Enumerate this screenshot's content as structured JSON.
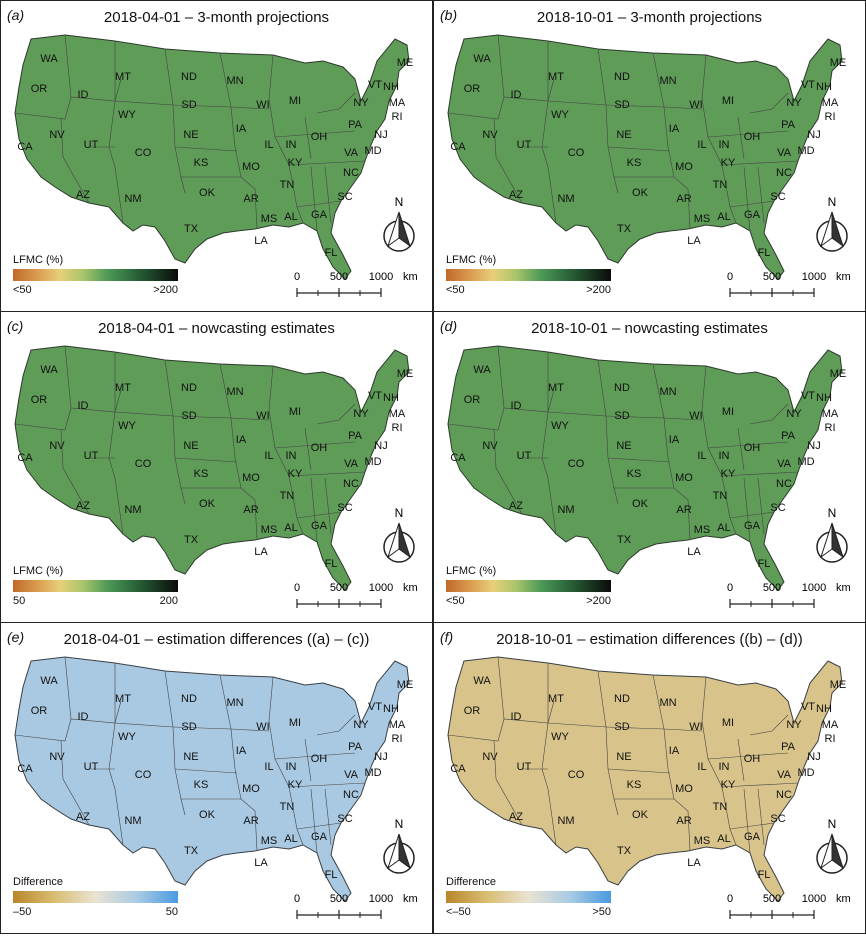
{
  "colors": {
    "lfmc": [
      "#c06a2a",
      "#d99a4e",
      "#e8cf7a",
      "#a7c46a",
      "#4f9a58",
      "#2f6e3e",
      "#1a3d24",
      "#0b0b0b"
    ],
    "diff": [
      "#b9862a",
      "#d9bd72",
      "#e9e3d2",
      "#a9cbe3",
      "#4a9ae0"
    ]
  },
  "panels": [
    {
      "label": "(a)",
      "title": "2018-04-01 – 3-month projections",
      "legend_title": "LFMC (%)",
      "cb_low": "<50",
      "cb_high": ">200",
      "palette": "lfmc",
      "map_tone": "green"
    },
    {
      "label": "(b)",
      "title": "2018-10-01 – 3-month projections",
      "legend_title": "LFMC (%)",
      "cb_low": "<50",
      "cb_high": ">200",
      "palette": "lfmc",
      "map_tone": "green"
    },
    {
      "label": "(c)",
      "title": "2018-04-01 – nowcasting estimates",
      "legend_title": "LFMC (%)",
      "cb_low": "50",
      "cb_high": "200",
      "palette": "lfmc",
      "map_tone": "green"
    },
    {
      "label": "(d)",
      "title": "2018-10-01 – nowcasting estimates",
      "legend_title": "LFMC (%)",
      "cb_low": "<50",
      "cb_high": ">200",
      "palette": "lfmc",
      "map_tone": "green"
    },
    {
      "label": "(e)",
      "title": "2018-04-01 – estimation differences ((a) – (c))",
      "legend_title": "Difference",
      "cb_low": "–50",
      "cb_high": "50",
      "palette": "diff",
      "map_tone": "blue"
    },
    {
      "label": "(f)",
      "title": "2018-10-01 – estimation differences ((b) – (d))",
      "legend_title": "Difference",
      "cb_low": "<–50",
      "cb_high": ">50",
      "palette": "diff",
      "map_tone": "tan"
    }
  ],
  "scalebar": {
    "ticks": [
      "0",
      "500",
      "1000"
    ],
    "unit": "km"
  },
  "north_label": "N",
  "states": [
    "WA",
    "OR",
    "CA",
    "ID",
    "NV",
    "MT",
    "WY",
    "UT",
    "AZ",
    "CO",
    "NM",
    "ND",
    "SD",
    "NE",
    "KS",
    "OK",
    "TX",
    "MN",
    "IA",
    "MO",
    "AR",
    "LA",
    "WI",
    "IL",
    "MI",
    "IN",
    "KY",
    "TN",
    "MS",
    "AL",
    "GA",
    "FL",
    "SC",
    "NC",
    "VA",
    "OH",
    "PA",
    "NY",
    "NJ",
    "MD",
    "VT",
    "NH",
    "ME",
    "MA",
    "RI"
  ]
}
